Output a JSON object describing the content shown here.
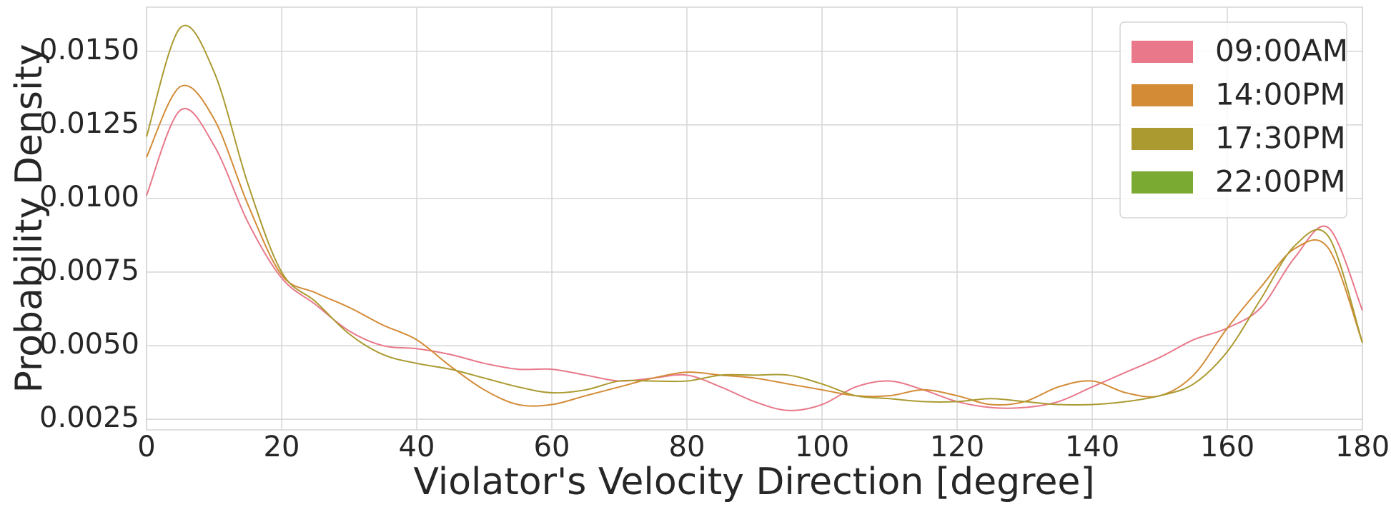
{
  "chart_data": {
    "type": "line",
    "xlabel": "Violator's Velocity Direction [degree]",
    "ylabel": "Probability Density",
    "x": [
      0,
      5,
      10,
      15,
      20,
      25,
      30,
      35,
      40,
      45,
      50,
      55,
      60,
      65,
      70,
      75,
      80,
      85,
      90,
      95,
      100,
      105,
      110,
      115,
      120,
      125,
      130,
      135,
      140,
      145,
      150,
      155,
      160,
      165,
      170,
      175,
      180
    ],
    "series": [
      {
        "name": "09:00AM",
        "color": "#e8788a",
        "values": [
          0.0101,
          0.013,
          0.0118,
          0.0092,
          0.0073,
          0.0064,
          0.0055,
          0.005,
          0.0049,
          0.0047,
          0.0044,
          0.0042,
          0.0042,
          0.004,
          0.0038,
          0.0039,
          0.004,
          0.0036,
          0.0031,
          0.0028,
          0.003,
          0.0036,
          0.0038,
          0.0035,
          0.0031,
          0.0029,
          0.0029,
          0.0031,
          0.0036,
          0.0041,
          0.0046,
          0.0052,
          0.0056,
          0.0063,
          0.008,
          0.009,
          0.0062
        ]
      },
      {
        "name": "14:00PM",
        "color": "#d38b36",
        "values": [
          0.0114,
          0.0138,
          0.0127,
          0.0098,
          0.0074,
          0.0068,
          0.0063,
          0.0057,
          0.0052,
          0.0043,
          0.0035,
          0.003,
          0.003,
          0.0033,
          0.0036,
          0.0039,
          0.0041,
          0.004,
          0.0039,
          0.0037,
          0.0035,
          0.0033,
          0.0033,
          0.0035,
          0.0033,
          0.003,
          0.0031,
          0.0036,
          0.0038,
          0.0034,
          0.0033,
          0.004,
          0.0056,
          0.007,
          0.0083,
          0.0083,
          0.0051
        ]
      },
      {
        "name": "17:30PM",
        "color": "#ab9a30",
        "values": [
          0.0121,
          0.0158,
          0.0143,
          0.0105,
          0.0075,
          0.0065,
          0.0054,
          0.0047,
          0.0044,
          0.0042,
          0.0039,
          0.0036,
          0.0034,
          0.0035,
          0.0038,
          0.0038,
          0.0038,
          0.004,
          0.004,
          0.004,
          0.0037,
          0.0033,
          0.0032,
          0.0031,
          0.0031,
          0.0032,
          0.0031,
          0.003,
          0.003,
          0.0031,
          0.0033,
          0.0037,
          0.0048,
          0.0066,
          0.0084,
          0.0087,
          0.0051
        ]
      },
      {
        "name": "22:00PM",
        "color": "#7aaa32",
        "values": [
          null,
          null,
          null,
          null,
          null,
          null,
          null,
          null,
          null,
          null,
          null,
          null,
          null,
          null,
          null,
          null,
          null,
          null,
          null,
          null,
          null,
          null,
          null,
          null,
          null,
          null,
          null,
          null,
          null,
          null,
          null,
          null,
          null,
          null,
          null,
          null,
          null
        ]
      }
    ],
    "xlim": [
      0,
      180
    ],
    "ylim": [
      0.00214,
      0.0165
    ],
    "xticks": [
      0,
      20,
      40,
      60,
      80,
      100,
      120,
      140,
      160,
      180
    ],
    "yticks": [
      {
        "value": 0.0025,
        "label": "0.0025"
      },
      {
        "value": 0.005,
        "label": "0.0050"
      },
      {
        "value": 0.0075,
        "label": "0.0075"
      },
      {
        "value": 0.01,
        "label": "0.0100"
      },
      {
        "value": 0.0125,
        "label": "0.0125"
      },
      {
        "value": 0.015,
        "label": "0.0150"
      }
    ],
    "grid": true,
    "legend": "upper right"
  }
}
